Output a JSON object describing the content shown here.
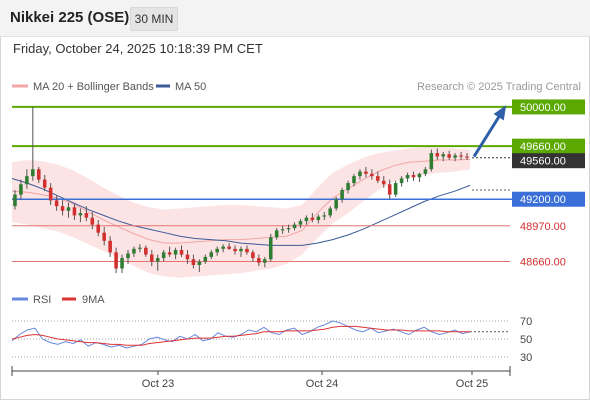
{
  "header": {
    "title": "Nikkei 225 (OSE)",
    "timeframe": "30 MIN"
  },
  "datetime": "Friday, October 24, 2025 10:18:39 PM CET",
  "legend": {
    "ma20_bb": "MA 20 + Bollinger Bands",
    "ma50": "MA 50",
    "credit": "Research © 2025 Trading Central",
    "rsi": "RSI",
    "ma9": "9MA"
  },
  "colors": {
    "bull": "#2e7d32",
    "bear": "#d32f2f",
    "bollinger_fill": "#fde4e4",
    "ma20": "#f2a5a5",
    "ma50": "#3b5998",
    "resistance": "#5aa800",
    "pivot": "#3a6fd8",
    "support": "#e57373",
    "arrow": "#2f5fa8",
    "current_price": "#333333",
    "rsi_line": "#6688dd",
    "rsi_ma": "#dd3333"
  },
  "chart_data": [
    {
      "type": "candlestick",
      "x_ticks": [
        "Oct 23",
        "Oct 24",
        "Oct 25"
      ],
      "ylim": [
        48500,
        50060
      ],
      "levels": [
        {
          "value": 50000,
          "label": "50000.00",
          "kind": "resistance"
        },
        {
          "value": 49660,
          "label": "49660.00",
          "kind": "resistance"
        },
        {
          "value": 49560,
          "label": "49560.00",
          "kind": "current"
        },
        {
          "value": 49200,
          "label": "49200.00",
          "kind": "pivot"
        },
        {
          "value": 48970,
          "label": "48970.00",
          "kind": "support"
        },
        {
          "value": 48660,
          "label": "48660.00",
          "kind": "support"
        }
      ],
      "bollinger": {
        "upper": [
          49520,
          49540,
          49530,
          49500,
          49450,
          49380,
          49300,
          49230,
          49170,
          49130,
          49110,
          49120,
          49130,
          49140,
          49150,
          49150,
          49140,
          49130,
          49120,
          49150,
          49300,
          49430,
          49500,
          49560,
          49600,
          49620,
          49640,
          49650,
          49650,
          49640,
          49630
        ],
        "lower": [
          49000,
          48980,
          48950,
          48920,
          48870,
          48810,
          48750,
          48690,
          48620,
          48560,
          48530,
          48520,
          48530,
          48540,
          48550,
          48560,
          48580,
          48600,
          48640,
          48720,
          48860,
          48990,
          49080,
          49180,
          49280,
          49350,
          49390,
          49410,
          49430,
          49440,
          49460
        ],
        "middle": [
          49270,
          49260,
          49240,
          49210,
          49160,
          49090,
          49020,
          48960,
          48900,
          48850,
          48820,
          48820,
          48830,
          48840,
          48850,
          48850,
          48860,
          48870,
          48880,
          48930,
          49080,
          49210,
          49290,
          49370,
          49440,
          49490,
          49520,
          49530,
          49540,
          49540,
          49545
        ]
      },
      "ma50": [
        49380,
        49340,
        49290,
        49230,
        49170,
        49110,
        49060,
        49010,
        48970,
        48940,
        48910,
        48880,
        48860,
        48850,
        48840,
        48820,
        48810,
        48800,
        48800,
        48800,
        48820,
        48850,
        48890,
        48940,
        49000,
        49060,
        49120,
        49180,
        49230,
        49270,
        49320
      ],
      "candles": [
        [
          49140,
          49280,
          49110,
          49240
        ],
        [
          49240,
          49370,
          49200,
          49330
        ],
        [
          49330,
          49460,
          49290,
          49400
        ],
        [
          49400,
          50000,
          49360,
          49460
        ],
        [
          49460,
          49480,
          49340,
          49370
        ],
        [
          49370,
          49410,
          49270,
          49300
        ],
        [
          49300,
          49340,
          49150,
          49190
        ],
        [
          49190,
          49230,
          49100,
          49140
        ],
        [
          49140,
          49190,
          49060,
          49100
        ],
        [
          49100,
          49170,
          49040,
          49130
        ],
        [
          49130,
          49160,
          49020,
          49060
        ],
        [
          49060,
          49120,
          49000,
          49080
        ],
        [
          49080,
          49140,
          49010,
          49040
        ],
        [
          49040,
          49090,
          48940,
          48980
        ],
        [
          48980,
          49020,
          48880,
          48910
        ],
        [
          48910,
          48960,
          48800,
          48840
        ],
        [
          48840,
          48880,
          48700,
          48740
        ],
        [
          48740,
          48780,
          48560,
          48600
        ],
        [
          48600,
          48720,
          48560,
          48690
        ],
        [
          48690,
          48760,
          48640,
          48730
        ],
        [
          48730,
          48790,
          48700,
          48770
        ],
        [
          48770,
          48810,
          48740,
          48780
        ],
        [
          48780,
          48800,
          48700,
          48720
        ],
        [
          48720,
          48760,
          48620,
          48660
        ],
        [
          48660,
          48720,
          48580,
          48690
        ],
        [
          48690,
          48760,
          48660,
          48740
        ],
        [
          48740,
          48790,
          48700,
          48720
        ],
        [
          48720,
          48780,
          48680,
          48760
        ],
        [
          48760,
          48800,
          48700,
          48720
        ],
        [
          48720,
          48760,
          48640,
          48680
        ],
        [
          48680,
          48720,
          48600,
          48630
        ],
        [
          48630,
          48680,
          48570,
          48660
        ],
        [
          48660,
          48720,
          48640,
          48700
        ],
        [
          48700,
          48760,
          48680,
          48740
        ],
        [
          48740,
          48790,
          48710,
          48770
        ],
        [
          48770,
          48810,
          48740,
          48790
        ],
        [
          48790,
          48820,
          48760,
          48770
        ],
        [
          48770,
          48800,
          48720,
          48750
        ],
        [
          48750,
          48790,
          48700,
          48770
        ],
        [
          48770,
          48800,
          48720,
          48740
        ],
        [
          48740,
          48760,
          48660,
          48690
        ],
        [
          48690,
          48720,
          48620,
          48650
        ],
        [
          48650,
          48700,
          48610,
          48680
        ],
        [
          48680,
          48900,
          48660,
          48870
        ],
        [
          48870,
          48950,
          48850,
          48930
        ],
        [
          48930,
          48970,
          48900,
          48940
        ],
        [
          48940,
          48980,
          48910,
          48950
        ],
        [
          48950,
          49000,
          48930,
          48980
        ],
        [
          48980,
          49030,
          48950,
          49010
        ],
        [
          49010,
          49060,
          48980,
          49040
        ],
        [
          49040,
          49080,
          49000,
          49020
        ],
        [
          49020,
          49070,
          48990,
          49050
        ],
        [
          49050,
          49090,
          49020,
          49060
        ],
        [
          49060,
          49140,
          49040,
          49120
        ],
        [
          49120,
          49220,
          49100,
          49200
        ],
        [
          49200,
          49300,
          49170,
          49280
        ],
        [
          49280,
          49360,
          49250,
          49340
        ],
        [
          49340,
          49420,
          49310,
          49400
        ],
        [
          49400,
          49460,
          49370,
          49440
        ],
        [
          49440,
          49480,
          49390,
          49420
        ],
        [
          49420,
          49460,
          49370,
          49400
        ],
        [
          49400,
          49440,
          49340,
          49360
        ],
        [
          49360,
          49400,
          49300,
          49330
        ],
        [
          49330,
          49370,
          49200,
          49240
        ],
        [
          49240,
          49360,
          49220,
          49340
        ],
        [
          49340,
          49400,
          49310,
          49380
        ],
        [
          49380,
          49430,
          49350,
          49410
        ],
        [
          49410,
          49440,
          49360,
          49390
        ],
        [
          49390,
          49430,
          49350,
          49420
        ],
        [
          49420,
          49480,
          49400,
          49460
        ],
        [
          49460,
          49630,
          49440,
          49600
        ],
        [
          49600,
          49640,
          49540,
          49570
        ],
        [
          49570,
          49610,
          49530,
          49590
        ],
        [
          49590,
          49620,
          49540,
          49560
        ],
        [
          49560,
          49600,
          49530,
          49580
        ],
        [
          49580,
          49610,
          49540,
          49570
        ],
        [
          49570,
          49600,
          49540,
          49560
        ]
      ]
    },
    {
      "type": "line",
      "name": "RSI panel",
      "ylim": [
        20,
        80
      ],
      "y_ticks": [
        70,
        50,
        30
      ],
      "series": [
        {
          "name": "RSI",
          "values": [
            48,
            55,
            60,
            62,
            50,
            46,
            44,
            47,
            45,
            49,
            42,
            46,
            44,
            41,
            43,
            40,
            42,
            44,
            50,
            52,
            49,
            47,
            53,
            50,
            55,
            48,
            50,
            57,
            53,
            52,
            55,
            60,
            58,
            63,
            57,
            55,
            60,
            62,
            55,
            58,
            63,
            66,
            70,
            68,
            64,
            60,
            58,
            62,
            57,
            59,
            61,
            58,
            55,
            60,
            63,
            58,
            55,
            57,
            60,
            56,
            58
          ]
        },
        {
          "name": "9MA",
          "values": [
            50,
            52,
            54,
            55,
            54,
            52,
            50,
            49,
            48,
            47,
            46,
            46,
            45,
            44,
            44,
            43,
            43,
            43,
            45,
            46,
            47,
            48,
            49,
            50,
            51,
            51,
            51,
            52,
            53,
            53,
            54,
            55,
            56,
            58,
            58,
            58,
            59,
            59,
            59,
            59,
            60,
            61,
            63,
            64,
            64,
            64,
            63,
            62,
            61,
            60,
            60,
            60,
            59,
            59,
            59,
            59,
            59,
            58,
            58,
            58,
            58
          ]
        }
      ]
    }
  ]
}
